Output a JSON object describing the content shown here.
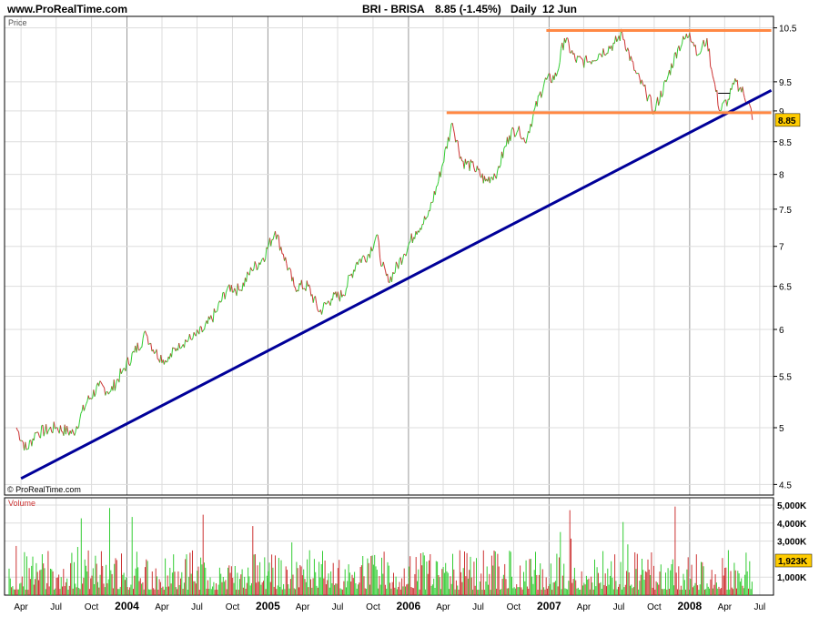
{
  "header": {
    "site": "www.ProRealTime.com",
    "symbol": "BRI - BRISA",
    "price_change": "8.85 (-1.45%)",
    "period": "Daily",
    "date": "12 Jun"
  },
  "price_panel": {
    "label": "Price",
    "credit": "© ProRealTime.com",
    "y_ticks": [
      "4.5",
      "5",
      "5.5",
      "6",
      "6.5",
      "7",
      "7.5",
      "8",
      "8.5",
      "9",
      "9.5",
      "10.5"
    ],
    "last_price_label": "8.85"
  },
  "volume_panel": {
    "label": "Volume",
    "y_ticks": [
      "1,000K",
      "3,000K",
      "4,000K",
      "5,000K"
    ],
    "last_volume_label": "1,923K"
  },
  "x_axis": {
    "ticks": [
      {
        "label": "Apr",
        "bold": false
      },
      {
        "label": "Jul",
        "bold": false
      },
      {
        "label": "Oct",
        "bold": false
      },
      {
        "label": "2004",
        "bold": true
      },
      {
        "label": "Apr",
        "bold": false
      },
      {
        "label": "Jul",
        "bold": false
      },
      {
        "label": "Oct",
        "bold": false
      },
      {
        "label": "2005",
        "bold": true
      },
      {
        "label": "Apr",
        "bold": false
      },
      {
        "label": "Jul",
        "bold": false
      },
      {
        "label": "Oct",
        "bold": false
      },
      {
        "label": "2006",
        "bold": true
      },
      {
        "label": "Apr",
        "bold": false
      },
      {
        "label": "Jul",
        "bold": false
      },
      {
        "label": "Oct",
        "bold": false
      },
      {
        "label": "2007",
        "bold": true
      },
      {
        "label": "Apr",
        "bold": false
      },
      {
        "label": "Jul",
        "bold": false
      },
      {
        "label": "Oct",
        "bold": false
      },
      {
        "label": "2008",
        "bold": true
      },
      {
        "label": "Apr",
        "bold": false
      },
      {
        "label": "Jul",
        "bold": false
      }
    ]
  },
  "colors": {
    "up": "#33cc33",
    "down": "#cc3333",
    "trendline": "#000099",
    "resistance": "#ff8844",
    "grid": "#dddddd",
    "year_grid": "#999999",
    "badge": "#ffcc00"
  },
  "chart_data": {
    "type": "line",
    "y_scale": "log",
    "ylim": [
      4.45,
      10.6
    ],
    "price_series": [
      {
        "x": "2003-03-20",
        "y": 5.0
      },
      {
        "x": "2003-04-15",
        "y": 4.8
      },
      {
        "x": "2003-05-10",
        "y": 4.95
      },
      {
        "x": "2003-07-01",
        "y": 5.0
      },
      {
        "x": "2003-08-15",
        "y": 4.95
      },
      {
        "x": "2003-09-20",
        "y": 5.25
      },
      {
        "x": "2003-10-20",
        "y": 5.4
      },
      {
        "x": "2003-11-20",
        "y": 5.35
      },
      {
        "x": "2003-12-20",
        "y": 5.55
      },
      {
        "x": "2004-01-20",
        "y": 5.75
      },
      {
        "x": "2004-02-20",
        "y": 5.95
      },
      {
        "x": "2004-03-15",
        "y": 5.75
      },
      {
        "x": "2004-04-15",
        "y": 5.65
      },
      {
        "x": "2004-05-15",
        "y": 5.85
      },
      {
        "x": "2004-06-20",
        "y": 5.9
      },
      {
        "x": "2004-07-20",
        "y": 6.0
      },
      {
        "x": "2004-08-20",
        "y": 6.2
      },
      {
        "x": "2004-09-20",
        "y": 6.5
      },
      {
        "x": "2004-10-20",
        "y": 6.45
      },
      {
        "x": "2004-11-20",
        "y": 6.7
      },
      {
        "x": "2004-12-20",
        "y": 6.85
      },
      {
        "x": "2005-01-20",
        "y": 7.2
      },
      {
        "x": "2005-02-10",
        "y": 6.9
      },
      {
        "x": "2005-03-10",
        "y": 6.5
      },
      {
        "x": "2005-04-15",
        "y": 6.5
      },
      {
        "x": "2005-05-15",
        "y": 6.2
      },
      {
        "x": "2005-06-15",
        "y": 6.35
      },
      {
        "x": "2005-07-15",
        "y": 6.4
      },
      {
        "x": "2005-08-20",
        "y": 6.8
      },
      {
        "x": "2005-09-20",
        "y": 6.9
      },
      {
        "x": "2005-10-10",
        "y": 7.15
      },
      {
        "x": "2005-10-25",
        "y": 6.75
      },
      {
        "x": "2005-11-10",
        "y": 6.55
      },
      {
        "x": "2005-12-20",
        "y": 6.9
      },
      {
        "x": "2006-01-20",
        "y": 7.2
      },
      {
        "x": "2006-02-20",
        "y": 7.4
      },
      {
        "x": "2006-03-20",
        "y": 7.9
      },
      {
        "x": "2006-04-25",
        "y": 8.8
      },
      {
        "x": "2006-05-20",
        "y": 8.2
      },
      {
        "x": "2006-06-20",
        "y": 8.1
      },
      {
        "x": "2006-07-20",
        "y": 7.9
      },
      {
        "x": "2006-08-20",
        "y": 8.05
      },
      {
        "x": "2006-09-20",
        "y": 8.6
      },
      {
        "x": "2006-10-15",
        "y": 8.75
      },
      {
        "x": "2006-10-30",
        "y": 8.5
      },
      {
        "x": "2006-11-20",
        "y": 8.9
      },
      {
        "x": "2006-12-20",
        "y": 9.5
      },
      {
        "x": "2007-01-20",
        "y": 9.6
      },
      {
        "x": "2007-02-10",
        "y": 10.3
      },
      {
        "x": "2007-03-10",
        "y": 9.9
      },
      {
        "x": "2007-04-10",
        "y": 9.85
      },
      {
        "x": "2007-05-10",
        "y": 10.0
      },
      {
        "x": "2007-06-20",
        "y": 10.2
      },
      {
        "x": "2007-07-10",
        "y": 10.4
      },
      {
        "x": "2007-08-10",
        "y": 9.7
      },
      {
        "x": "2007-09-10",
        "y": 9.3
      },
      {
        "x": "2007-10-01",
        "y": 9.0
      },
      {
        "x": "2007-11-01",
        "y": 9.5
      },
      {
        "x": "2007-12-01",
        "y": 10.1
      },
      {
        "x": "2008-01-01",
        "y": 10.4
      },
      {
        "x": "2008-01-25",
        "y": 10.0
      },
      {
        "x": "2008-02-15",
        "y": 10.3
      },
      {
        "x": "2008-03-01",
        "y": 9.6
      },
      {
        "x": "2008-03-20",
        "y": 9.0
      },
      {
        "x": "2008-04-10",
        "y": 9.2
      },
      {
        "x": "2008-05-01",
        "y": 9.5
      },
      {
        "x": "2008-05-20",
        "y": 9.3
      },
      {
        "x": "2008-06-05",
        "y": 9.1
      },
      {
        "x": "2008-06-12",
        "y": 8.85
      }
    ],
    "trendline": {
      "from": {
        "x": "2003-04-01",
        "y": 4.55
      },
      "to": {
        "x": "2008-07-31",
        "y": 9.35
      }
    },
    "resistance_lines": [
      {
        "from": "2006-12-25",
        "to": "2008-07-31",
        "y": 10.45
      },
      {
        "from": "2006-04-10",
        "to": "2008-07-31",
        "y": 8.97
      }
    ],
    "marker": {
      "from": "2008-03-15",
      "to": "2008-04-15",
      "y": 9.3
    },
    "volume_ylim": [
      0,
      5200
    ],
    "volume_unit": "K"
  }
}
